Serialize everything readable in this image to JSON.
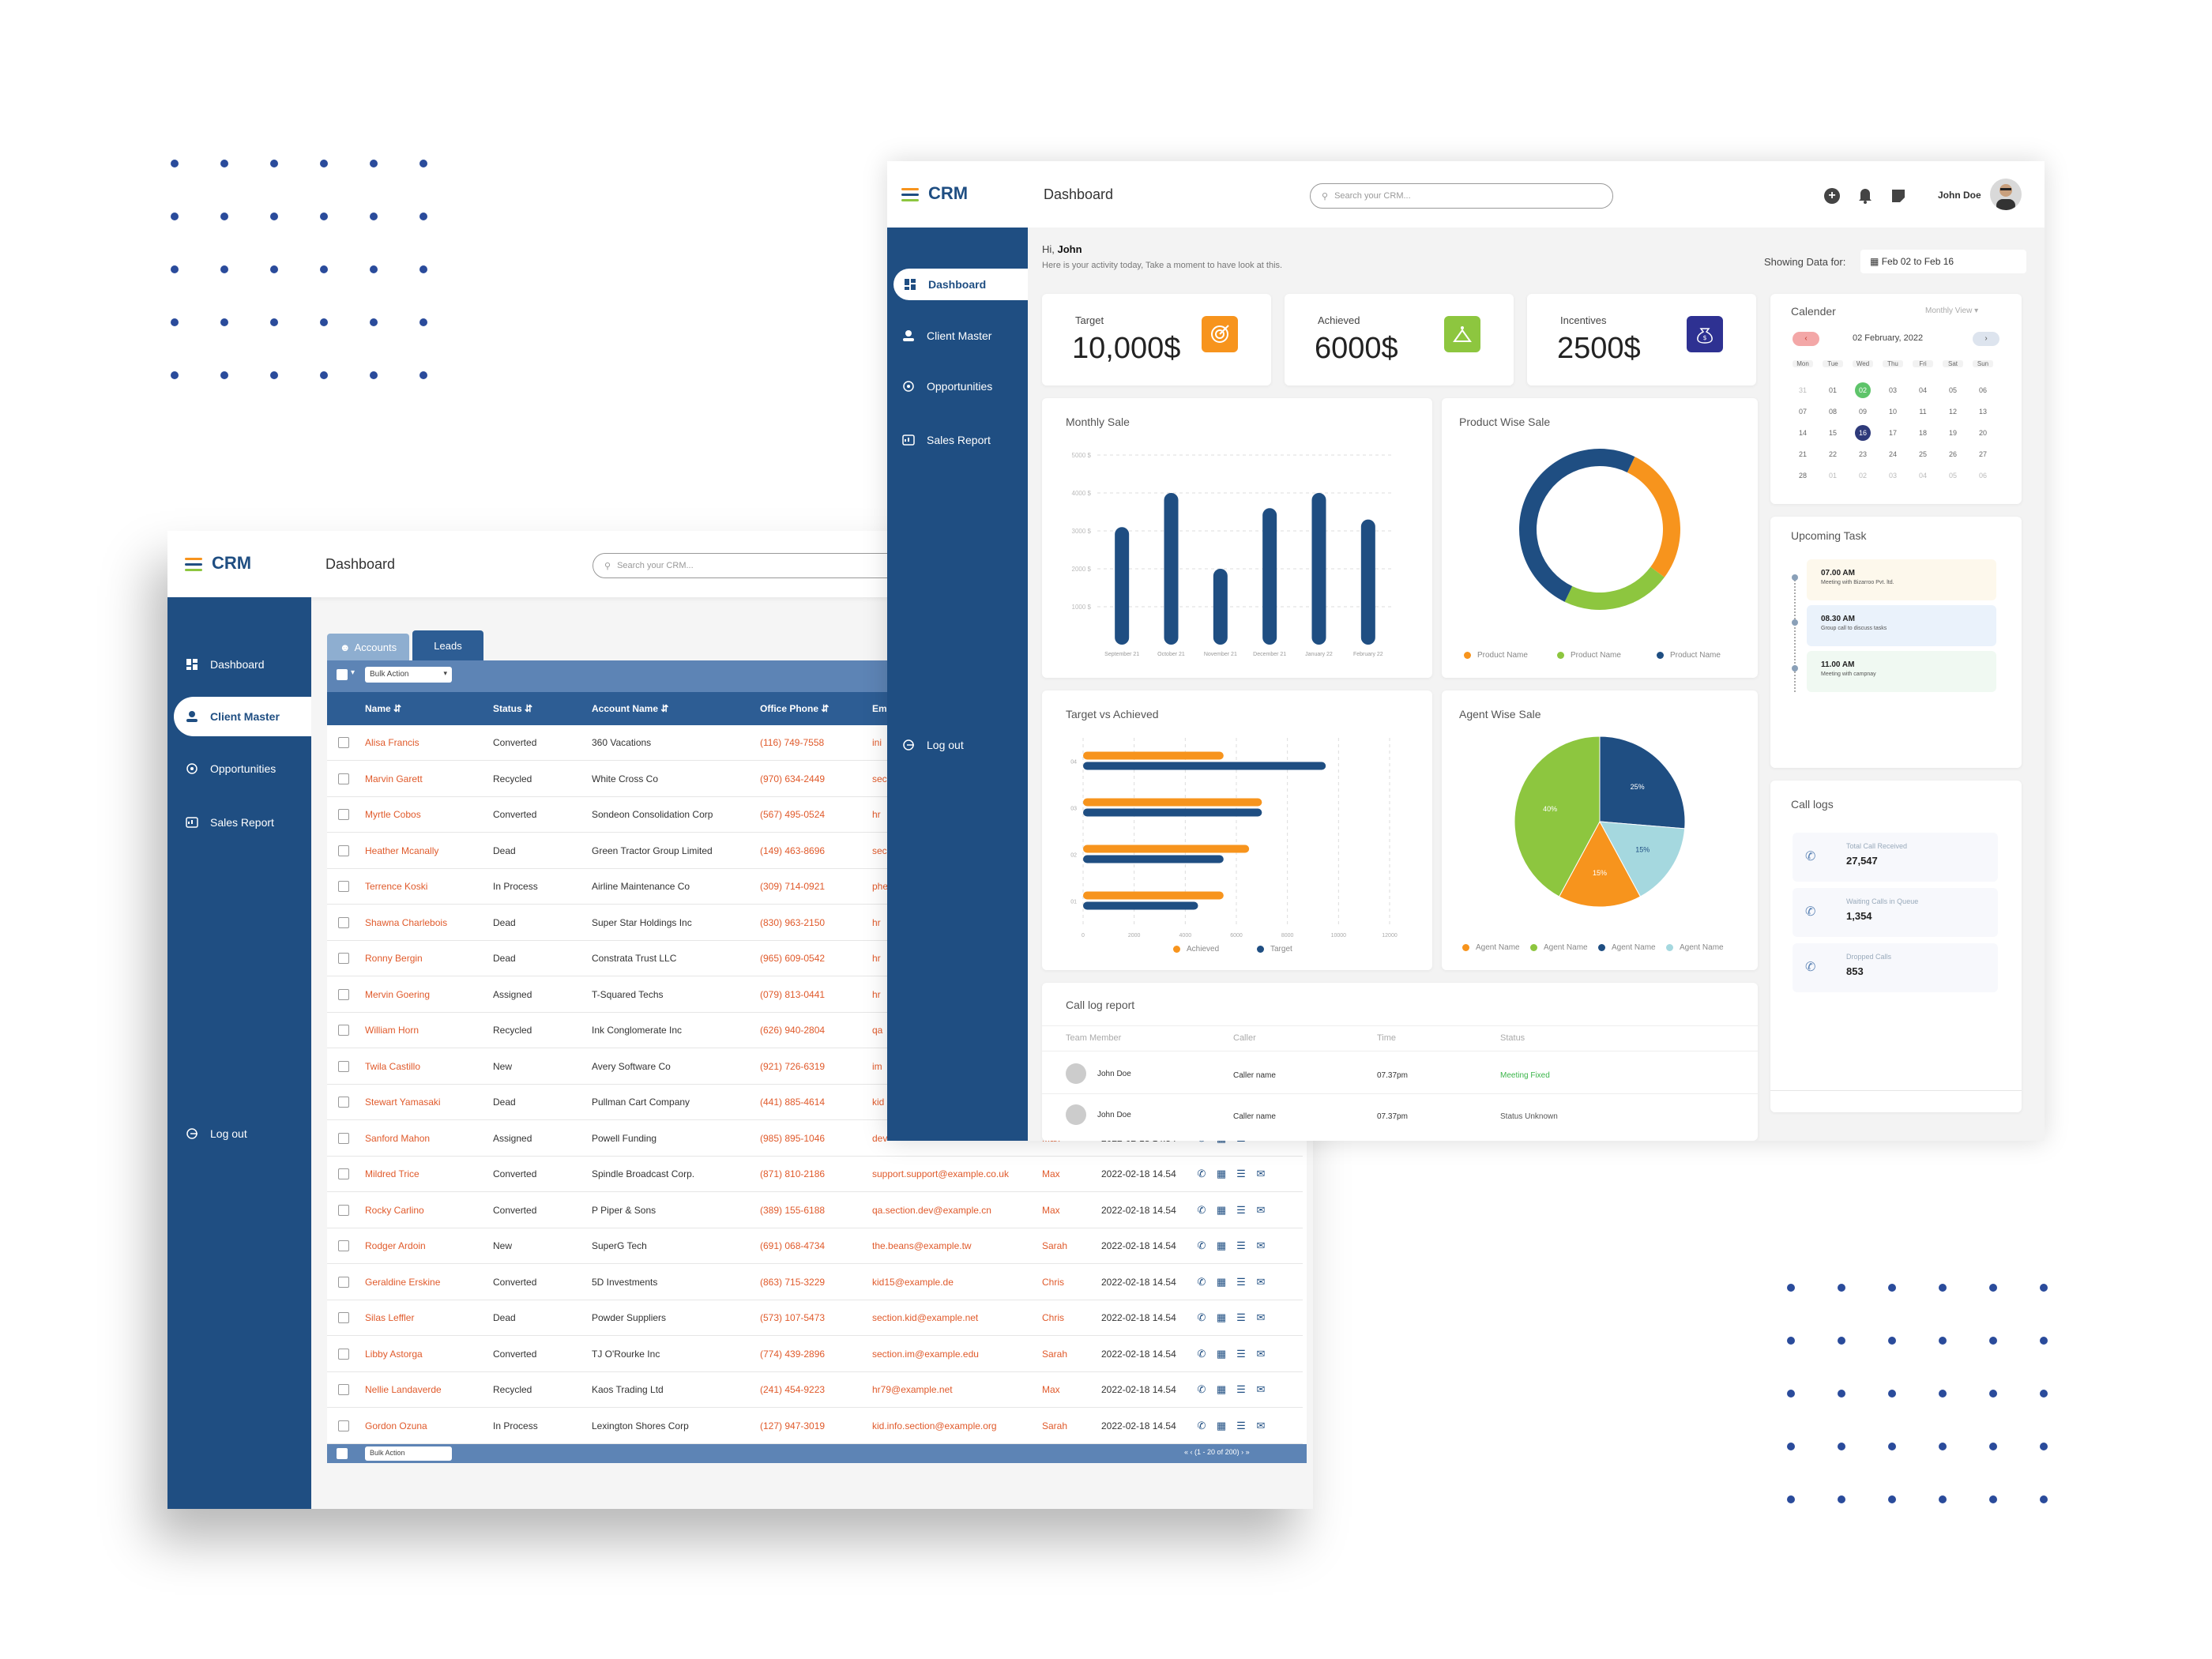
{
  "app": {
    "name": "CRM",
    "page_title": "Dashboard",
    "search_placeholder": "Search your CRM..."
  },
  "sidebar": {
    "items": [
      {
        "label": "Dashboard",
        "icon": "dashboard-icon"
      },
      {
        "label": "Client Master",
        "icon": "client-icon"
      },
      {
        "label": "Opportunities",
        "icon": "target-icon"
      },
      {
        "label": "Sales Report",
        "icon": "report-icon"
      }
    ],
    "logout_label": "Log out"
  },
  "header": {
    "user_name": "John Doe",
    "icons": [
      "add-icon",
      "bell-icon",
      "notes-icon"
    ]
  },
  "greeting": {
    "hi": "Hi,",
    "name": "John",
    "subtitle": "Here is your activity today, Take a moment to have look at this."
  },
  "date_filter": {
    "label": "Showing Data for:",
    "range": "Feb 02 to Feb 16"
  },
  "kpis": [
    {
      "label": "Target",
      "value": "10,000$",
      "color": "#f7941d",
      "icon": "target-icon"
    },
    {
      "label": "Achieved",
      "value": "6000$",
      "color": "#8dc63f",
      "icon": "achieved-icon"
    },
    {
      "label": "Incentives",
      "value": "2500$",
      "color": "#2e3192",
      "icon": "money-bag-icon"
    }
  ],
  "calendar": {
    "title": "Calender",
    "view": "Monthly View",
    "month_label": "02 February, 2022",
    "weekdays": [
      "Mon",
      "Tue",
      "Wed",
      "Thu",
      "Fri",
      "Sat",
      "Sun"
    ],
    "weeks": [
      [
        "31",
        "01",
        "02",
        "03",
        "04",
        "05",
        "06"
      ],
      [
        "07",
        "08",
        "09",
        "10",
        "11",
        "12",
        "13"
      ],
      [
        "14",
        "15",
        "16",
        "17",
        "18",
        "19",
        "20"
      ],
      [
        "21",
        "22",
        "23",
        "24",
        "25",
        "26",
        "27"
      ],
      [
        "28",
        "01",
        "02",
        "03",
        "04",
        "05",
        "06"
      ]
    ],
    "highlight_green": "02",
    "highlight_blue": "16"
  },
  "upcoming_tasks": {
    "title": "Upcoming Task",
    "items": [
      {
        "time": "07.00 AM",
        "desc": "Meeting with Bizarroo Pvt. ltd.",
        "color": "#fdf8ec"
      },
      {
        "time": "08.30 AM",
        "desc": "Group call to discuss tasks",
        "color": "#eaf2fb"
      },
      {
        "time": "11.00 AM",
        "desc": "Meeting with campnay",
        "color": "#f0f9f2"
      }
    ]
  },
  "call_logs": {
    "title": "Call logs",
    "items": [
      {
        "label": "Total Call Received",
        "value": "27,547",
        "icon": "phone-incoming-icon"
      },
      {
        "label": "Waiting Calls in Queue",
        "value": "1,354",
        "icon": "phone-waiting-icon"
      },
      {
        "label": "Dropped Calls",
        "value": "853",
        "icon": "phone-dropped-icon"
      }
    ]
  },
  "monthly_sale": {
    "title": "Monthly Sale"
  },
  "product_wise_sale": {
    "title": "Product Wise Sale",
    "legend": [
      "Product Name",
      "Product Name",
      "Product Name"
    ]
  },
  "target_vs_achieved": {
    "title": "Target vs Achieved",
    "legend": [
      "Achieved",
      "Target"
    ]
  },
  "agent_wise_sale": {
    "title": "Agent Wise Sale",
    "legend": [
      "Agent Name",
      "Agent Name",
      "Agent Name",
      "Agent Name"
    ]
  },
  "call_log_report": {
    "title": "Call log report",
    "columns": [
      "Team Member",
      "Caller",
      "Time",
      "Status"
    ],
    "rows": [
      {
        "member": "John Doe",
        "caller": "Caller name",
        "time": "07.37pm",
        "status": "Meeting Fixed",
        "status_color": "#3bb54a"
      },
      {
        "member": "John Doe",
        "caller": "Caller name",
        "time": "07.37pm",
        "status": "Status Unknown",
        "status_color": "#555"
      }
    ]
  },
  "chart_data": [
    {
      "type": "bar",
      "title": "Monthly Sale",
      "categories": [
        "September 21",
        "October 21",
        "November 21",
        "December 21",
        "January 22",
        "February 22"
      ],
      "values": [
        3100,
        4000,
        2000,
        3600,
        4000,
        3300
      ],
      "yticks": [
        "1000 $",
        "2000 $",
        "3000 $",
        "4000 $",
        "5000 $"
      ],
      "ylim": [
        0,
        5000
      ],
      "color": "#1f4e82"
    },
    {
      "type": "pie",
      "title": "Product Wise Sale",
      "donut": true,
      "labels": [
        "Product Name",
        "Product Name",
        "Product Name"
      ],
      "values": [
        28,
        22,
        50
      ],
      "colors": [
        "#f7941d",
        "#8dc63f",
        "#1f4e82"
      ]
    },
    {
      "type": "bar",
      "orientation": "horizontal",
      "title": "Target vs Achieved",
      "categories": [
        "04",
        "03",
        "02",
        "01"
      ],
      "series": [
        {
          "name": "Achieved",
          "values": [
            5500,
            7000,
            6500,
            5500
          ],
          "color": "#f7941d"
        },
        {
          "name": "Target",
          "values": [
            9500,
            7000,
            5500,
            4500
          ],
          "color": "#1f4e82"
        }
      ],
      "xticks": [
        "0",
        "2000",
        "4000",
        "6000",
        "8000",
        "10000",
        "12000"
      ],
      "xlim": [
        0,
        12000
      ]
    },
    {
      "type": "pie",
      "title": "Agent Wise Sale",
      "labels": [
        "Agent Name",
        "Agent Name",
        "Agent Name",
        "Agent Name"
      ],
      "values": [
        25,
        15,
        15,
        40
      ],
      "colors": [
        "#1f4e82",
        "#a5d8df",
        "#f7941d",
        "#8dc63f"
      ],
      "data_labels": [
        "25%",
        "15%",
        "15%",
        "40%"
      ]
    }
  ],
  "leads": {
    "tabs": [
      "Accounts",
      "Leads"
    ],
    "bulk_action": "Bulk Action",
    "columns": [
      "Name",
      "Status",
      "Account Name",
      "Office Phone",
      "Em"
    ],
    "pagination": "(1 - 20 of 200)",
    "rows": [
      {
        "name": "Alisa Francis",
        "status": "Converted",
        "account": "360 Vacations",
        "phone": "(116) 749-7558",
        "email": "ini",
        "user": "",
        "date": ""
      },
      {
        "name": "Marvin Garett",
        "status": "Recycled",
        "account": "White Cross Co",
        "phone": "(970) 634-2449",
        "email": "sec",
        "user": "",
        "date": ""
      },
      {
        "name": "Myrtle Cobos",
        "status": "Converted",
        "account": "Sondeon Consolidation Corp",
        "phone": "(567) 495-0524",
        "email": "hr",
        "user": "",
        "date": ""
      },
      {
        "name": "Heather Mcanally",
        "status": "Dead",
        "account": "Green Tractor Group Limited",
        "phone": "(149) 463-8696",
        "email": "sec",
        "user": "",
        "date": ""
      },
      {
        "name": "Terrence Koski",
        "status": "In Process",
        "account": "Airline Maintenance Co",
        "phone": "(309) 714-0921",
        "email": "phe",
        "user": "",
        "date": ""
      },
      {
        "name": "Shawna Charlebois",
        "status": "Dead",
        "account": "Super Star Holdings Inc",
        "phone": "(830) 963-2150",
        "email": "hr",
        "user": "",
        "date": ""
      },
      {
        "name": "Ronny Bergin",
        "status": "Dead",
        "account": "Constrata Trust LLC",
        "phone": "(965) 609-0542",
        "email": "hr",
        "user": "",
        "date": ""
      },
      {
        "name": "Mervin Goering",
        "status": "Assigned",
        "account": "T-Squared Techs",
        "phone": "(079) 813-0441",
        "email": "hr",
        "user": "",
        "date": ""
      },
      {
        "name": "William Horn",
        "status": "Recycled",
        "account": "Ink Conglomerate Inc",
        "phone": "(626) 940-2804",
        "email": "qa",
        "user": "",
        "date": ""
      },
      {
        "name": "Twila Castillo",
        "status": "New",
        "account": "Avery Software Co",
        "phone": "(921) 726-6319",
        "email": "im",
        "user": "",
        "date": ""
      },
      {
        "name": "Stewart Yamasaki",
        "status": "Dead",
        "account": "Pullman Cart Company",
        "phone": "(441) 885-4614",
        "email": "kid",
        "user": "",
        "date": ""
      },
      {
        "name": "Sanford Mahon",
        "status": "Assigned",
        "account": "Powell Funding",
        "phone": "(985) 895-1046",
        "email": "dev",
        "user": "Max",
        "date": "2022-02-18 14.54"
      },
      {
        "name": "Mildred Trice",
        "status": "Converted",
        "account": "Spindle Broadcast Corp.",
        "phone": "(871) 810-2186",
        "email": "support.support@example.co.uk",
        "user": "Max",
        "date": "2022-02-18 14.54"
      },
      {
        "name": "Rocky Carlino",
        "status": "Converted",
        "account": "P Piper & Sons",
        "phone": "(389) 155-6188",
        "email": "qa.section.dev@example.cn",
        "user": "Max",
        "date": "2022-02-18 14.54"
      },
      {
        "name": "Rodger Ardoin",
        "status": "New",
        "account": "SuperG Tech",
        "phone": "(691) 068-4734",
        "email": "the.beans@example.tw",
        "user": "Sarah",
        "date": "2022-02-18 14.54"
      },
      {
        "name": "Geraldine Erskine",
        "status": "Converted",
        "account": "5D Investments",
        "phone": "(863) 715-3229",
        "email": "kid15@example.de",
        "user": "Chris",
        "date": "2022-02-18 14.54"
      },
      {
        "name": "Silas Leffler",
        "status": "Dead",
        "account": "Powder Suppliers",
        "phone": "(573) 107-5473",
        "email": "section.kid@example.net",
        "user": "Chris",
        "date": "2022-02-18 14.54"
      },
      {
        "name": "Libby Astorga",
        "status": "Converted",
        "account": "TJ O'Rourke Inc",
        "phone": "(774) 439-2896",
        "email": "section.im@example.edu",
        "user": "Sarah",
        "date": "2022-02-18 14.54"
      },
      {
        "name": "Nellie Landaverde",
        "status": "Recycled",
        "account": "Kaos Trading Ltd",
        "phone": "(241) 454-9223",
        "email": "hr79@example.net",
        "user": "Max",
        "date": "2022-02-18 14.54"
      },
      {
        "name": "Gordon Ozuna",
        "status": "In Process",
        "account": "Lexington Shores Corp",
        "phone": "(127) 947-3019",
        "email": "kid.info.section@example.org",
        "user": "Sarah",
        "date": "2022-02-18 14.54"
      }
    ]
  }
}
